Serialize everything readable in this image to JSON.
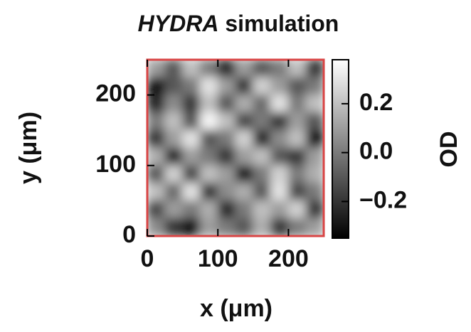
{
  "chart_data": {
    "type": "heatmap",
    "title_emphasis": "HYDRA",
    "title": "simulation",
    "xlabel": "x (μm)",
    "ylabel": "y (μm)",
    "colorbar_label": "OD",
    "colormap": "gray",
    "frame_color": "#d94545",
    "xlim": [
      0,
      250
    ],
    "ylim": [
      0,
      250
    ],
    "xticks": [
      0,
      100,
      200
    ],
    "yticks": [
      0,
      100,
      200
    ],
    "clim": [
      -0.35,
      0.38
    ],
    "cticks": [
      0.2,
      {
        "value": 0,
        "label": "0.0"
      },
      {
        "value": -0.2,
        "label": "−0.2"
      }
    ],
    "z": [
      [
        0.1,
        -0.1,
        0.2,
        0.0,
        -0.25,
        0.1,
        -0.1,
        0.0,
        0.2,
        -0.2
      ],
      [
        -0.3,
        -0.1,
        0.0,
        0.3,
        0.1,
        -0.2,
        0.25,
        0.1,
        -0.1,
        0.0
      ],
      [
        -0.25,
        0.05,
        -0.2,
        0.2,
        -0.1,
        0.15,
        -0.05,
        0.3,
        0.0,
        0.2
      ],
      [
        0.0,
        0.2,
        -0.1,
        0.35,
        0.2,
        -0.15,
        0.0,
        -0.2,
        0.1,
        -0.1
      ],
      [
        -0.2,
        0.1,
        0.3,
        -0.1,
        0.0,
        0.25,
        -0.25,
        0.05,
        0.2,
        -0.3
      ],
      [
        0.15,
        -0.25,
        0.1,
        0.0,
        -0.2,
        0.1,
        0.2,
        -0.1,
        -0.2,
        0.1
      ],
      [
        -0.1,
        0.25,
        -0.15,
        0.2,
        0.1,
        -0.3,
        0.0,
        0.25,
        0.0,
        0.15
      ],
      [
        0.2,
        -0.05,
        0.3,
        -0.2,
        0.05,
        0.15,
        -0.1,
        0.3,
        -0.15,
        0.0
      ],
      [
        -0.15,
        0.1,
        0.0,
        0.15,
        -0.25,
        0.0,
        0.2,
        0.1,
        0.25,
        -0.2
      ],
      [
        0.05,
        -0.2,
        -0.3,
        0.1,
        0.0,
        -0.1,
        0.15,
        -0.2,
        0.0,
        0.1
      ]
    ]
  }
}
